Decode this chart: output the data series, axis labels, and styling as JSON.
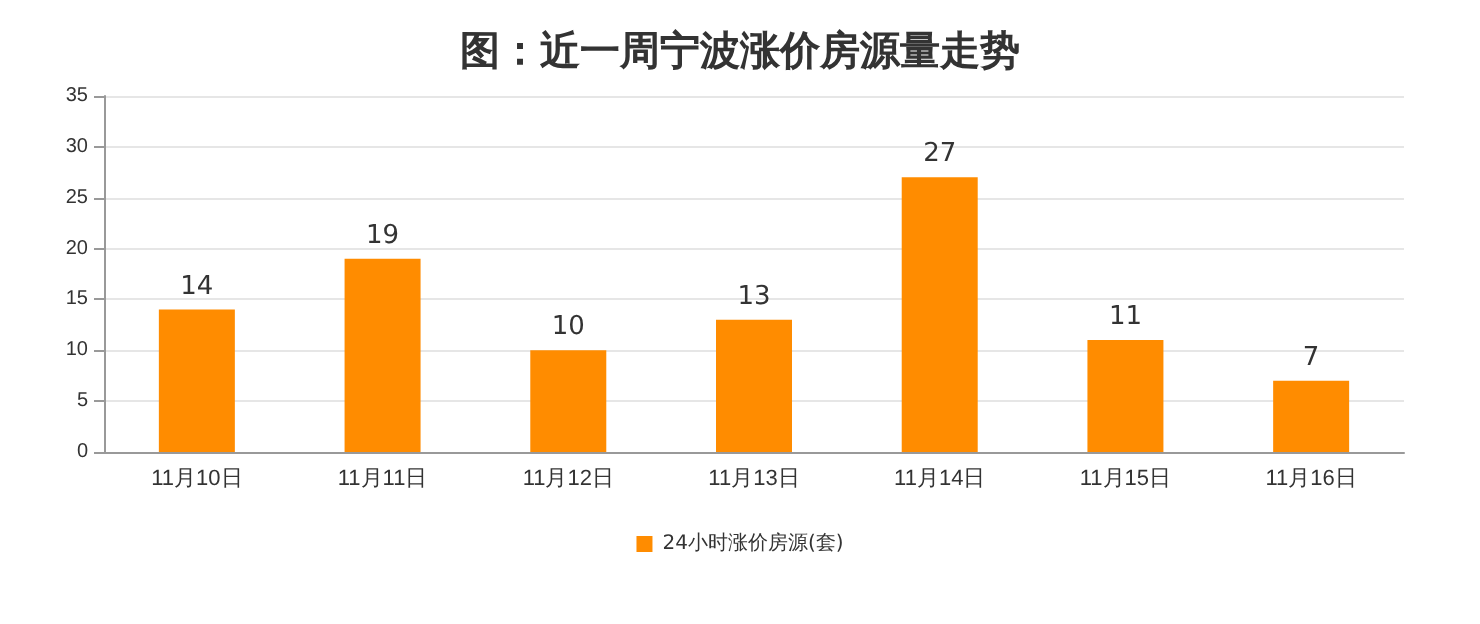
{
  "chart_data": {
    "type": "bar",
    "title": "图：近一周宁波涨价房源量走势",
    "categories": [
      "11月10日",
      "11月11日",
      "11月12日",
      "11月13日",
      "11月14日",
      "11月15日",
      "11月16日"
    ],
    "series": [
      {
        "name": "24小时涨价房源(套)",
        "color": "#ff8c00",
        "values": [
          14,
          19,
          10,
          13,
          27,
          11,
          7
        ]
      }
    ],
    "ylim": [
      0,
      35
    ],
    "yticks": [
      0,
      5,
      10,
      15,
      20,
      25,
      30,
      35
    ],
    "grid": "y",
    "legend": "bottom",
    "data_labels": true
  }
}
